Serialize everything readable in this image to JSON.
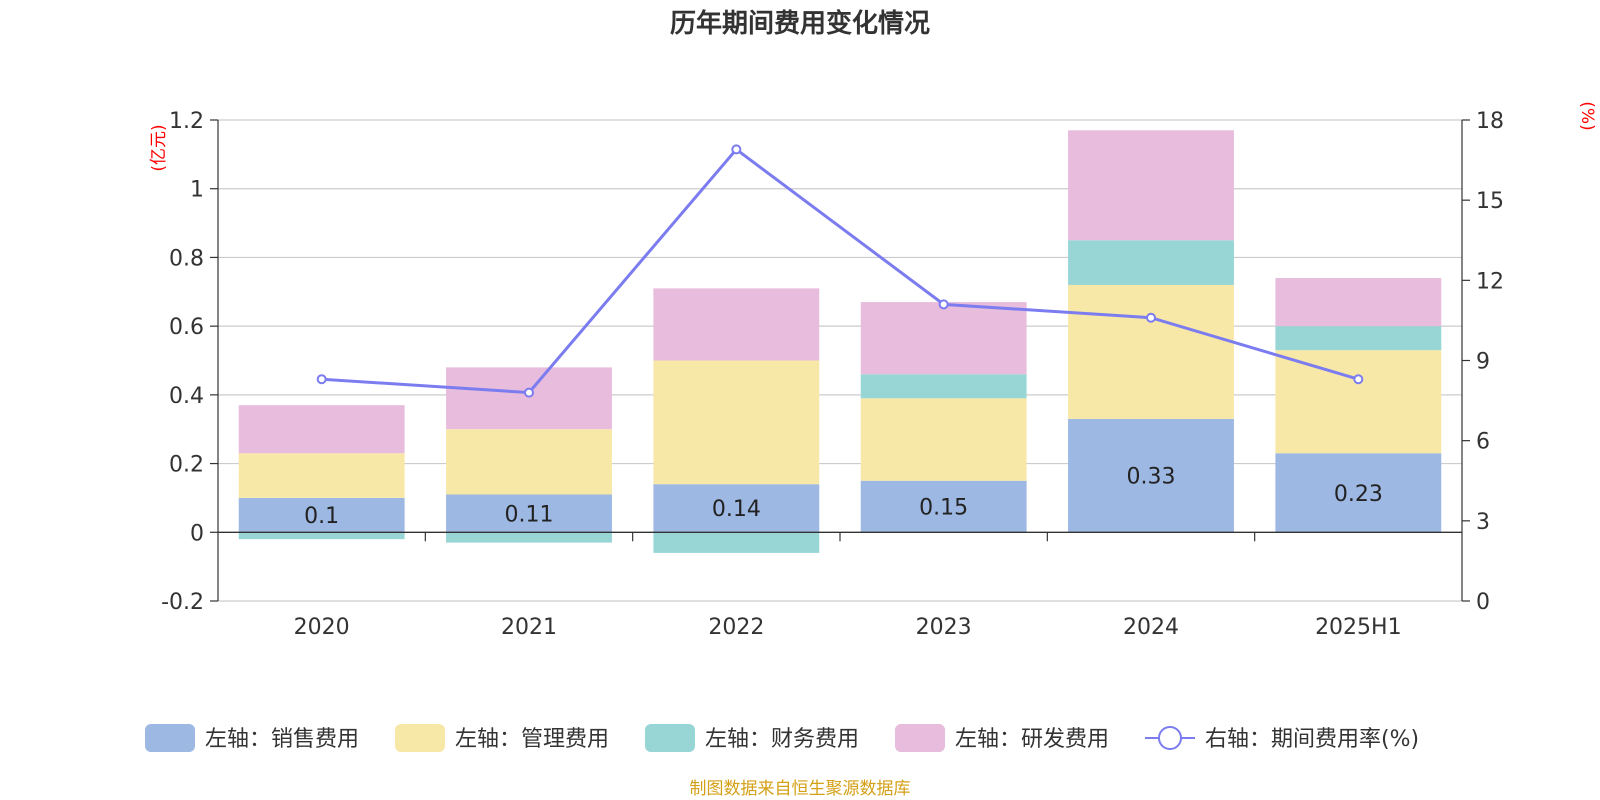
{
  "chart_data": {
    "type": "bar",
    "stacked": true,
    "title": "历年期间费用变化情况",
    "categories": [
      "2020",
      "2021",
      "2022",
      "2023",
      "2024",
      "2025H1"
    ],
    "y_left": {
      "unit": "(亿元)",
      "ylim": [
        -0.2,
        1.2
      ],
      "ticks": [
        1.2,
        1,
        0.8,
        0.6,
        0.4,
        0.2,
        0,
        -0.2
      ]
    },
    "y_right": {
      "unit": "(%)",
      "ylim": [
        0,
        18
      ],
      "ticks": [
        18,
        15,
        12,
        9,
        6,
        3,
        0
      ]
    },
    "grid": true,
    "legend_position": "bottom",
    "series": [
      {
        "name": "左轴：销售费用",
        "axis": "left",
        "type": "bar",
        "color": "#9db8e2",
        "values": [
          0.1,
          0.11,
          0.14,
          0.15,
          0.33,
          0.23
        ],
        "data_labels": [
          "0.1",
          "0.11",
          "0.14",
          "0.15",
          "0.33",
          "0.23"
        ]
      },
      {
        "name": "左轴：管理费用",
        "axis": "left",
        "type": "bar",
        "color": "#f8e8a8",
        "values": [
          0.13,
          0.19,
          0.36,
          0.24,
          0.39,
          0.3
        ]
      },
      {
        "name": "左轴：财务费用",
        "axis": "left",
        "type": "bar",
        "color": "#98d5d5",
        "values": [
          -0.02,
          -0.03,
          -0.06,
          0.07,
          0.13,
          0.07
        ]
      },
      {
        "name": "左轴：研发费用",
        "axis": "left",
        "type": "bar",
        "color": "#e8bcdc",
        "values": [
          0.14,
          0.18,
          0.21,
          0.21,
          0.32,
          0.14
        ]
      },
      {
        "name": "右轴：期间费用率(%)",
        "axis": "right",
        "type": "line",
        "color": "#7b7cf0",
        "values": [
          8.3,
          7.8,
          16.9,
          11.1,
          10.6,
          8.3
        ]
      }
    ],
    "source": "制图数据来自恒生聚源数据库"
  }
}
